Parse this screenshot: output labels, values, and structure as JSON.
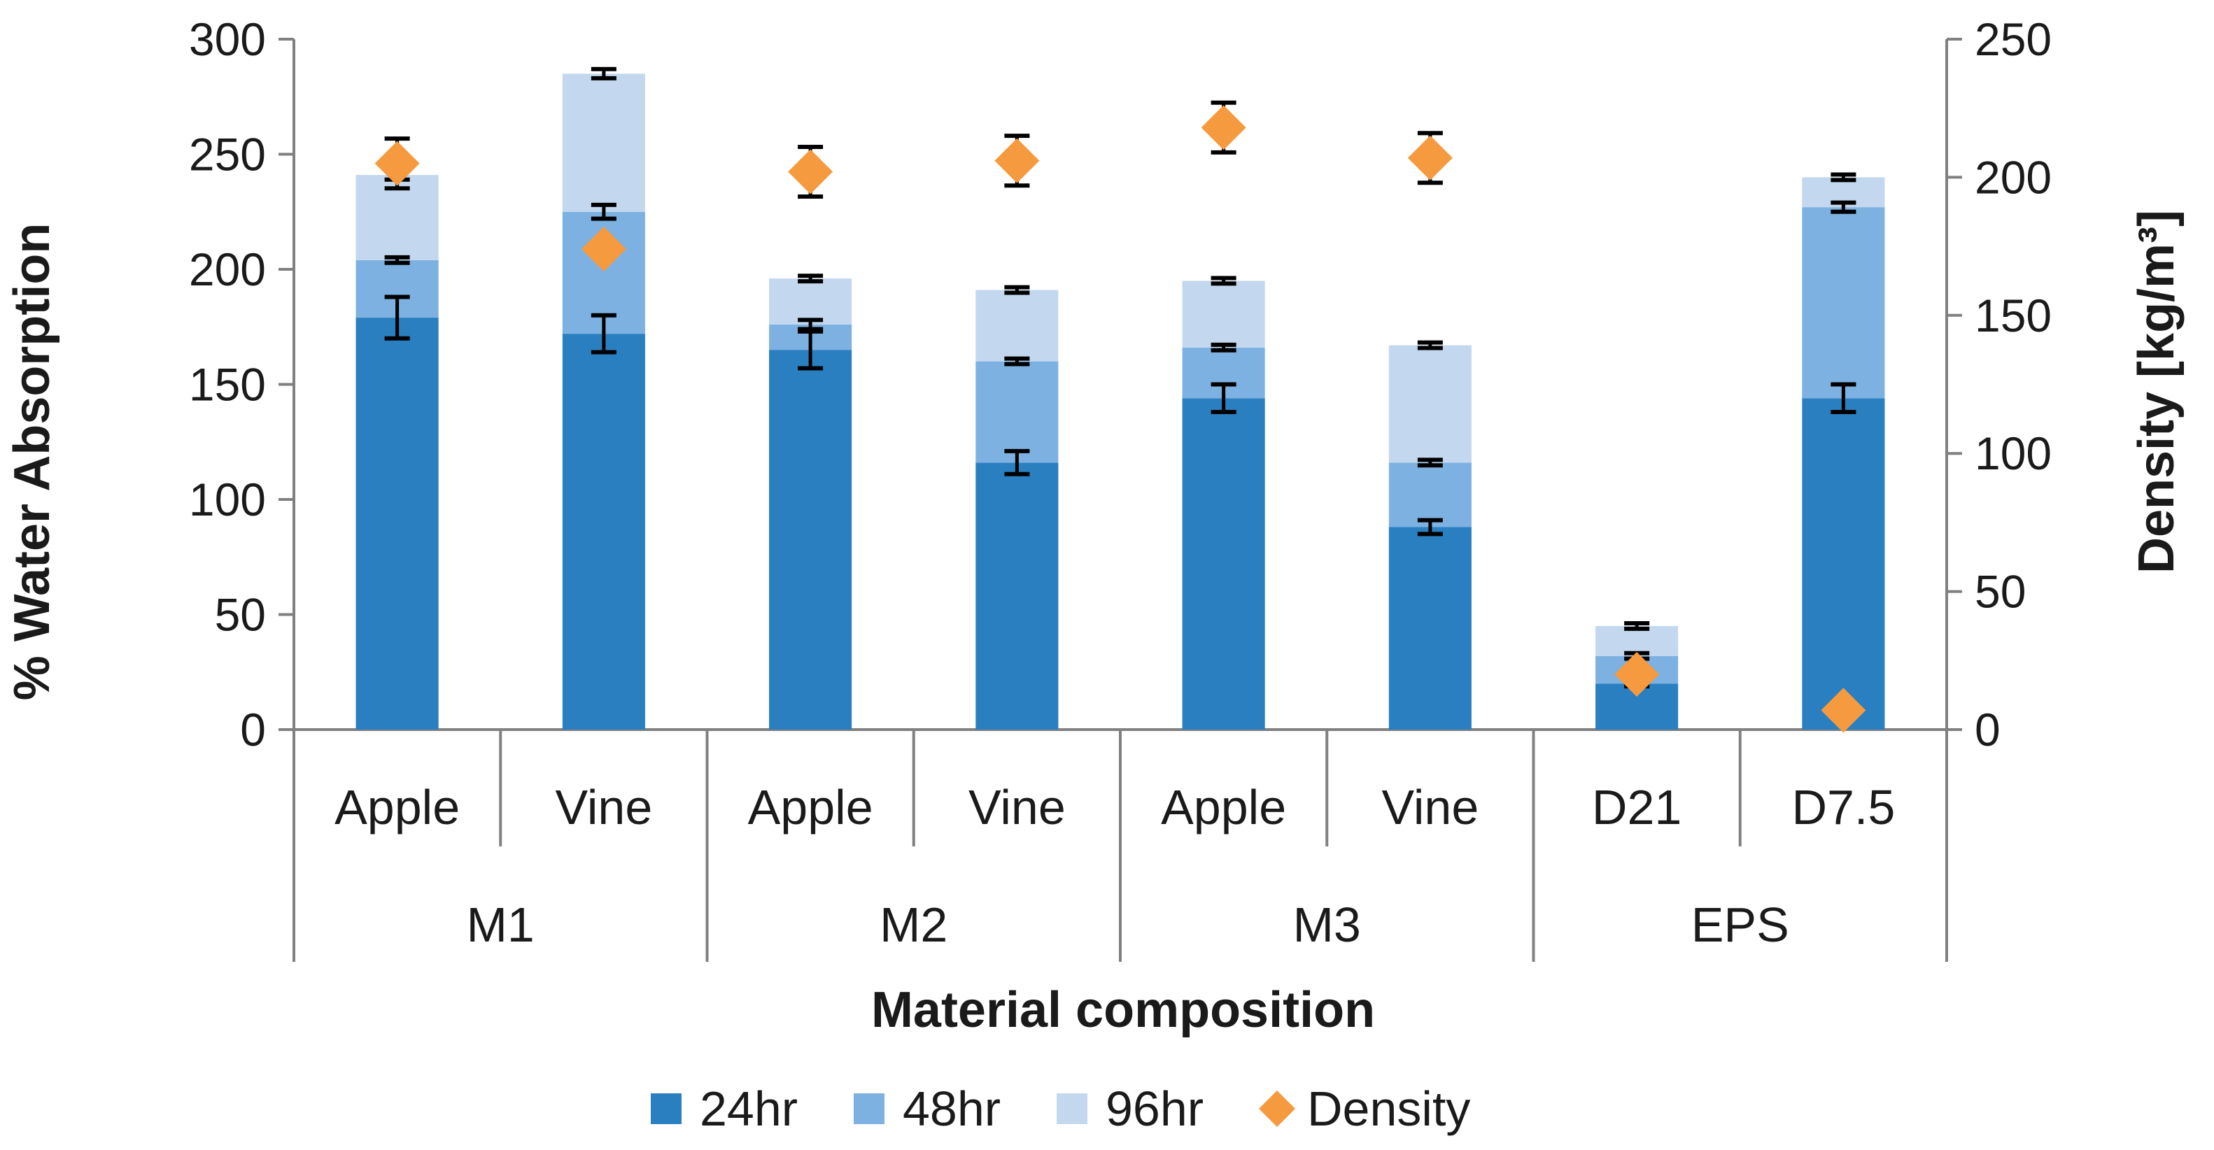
{
  "chart_data": {
    "type": "bar",
    "subtype": "stacked-bar-with-scatter-secondary-axis",
    "title": "",
    "xlabel": "Material composition",
    "ylabel": "% Water Absorption",
    "y2label": "Density [kg/m³]",
    "ylim": [
      0,
      300
    ],
    "y2lim": [
      0,
      250
    ],
    "yticks": [
      "0",
      "50",
      "100",
      "150",
      "200",
      "250",
      "300"
    ],
    "y2ticks": [
      "0",
      "50",
      "100",
      "150",
      "200",
      "250"
    ],
    "categories": [
      "Apple",
      "Vine",
      "Apple",
      "Vine",
      "Apple",
      "Vine",
      "D21",
      "D7.5"
    ],
    "groups": [
      {
        "label": "M1",
        "span": 2
      },
      {
        "label": "M2",
        "span": 2
      },
      {
        "label": "M3",
        "span": 2
      },
      {
        "label": "EPS",
        "span": 2
      }
    ],
    "series": [
      {
        "name": "24hr",
        "color": "#2a7fc1",
        "values": [
          179,
          172,
          165,
          116,
          144,
          88,
          20,
          144
        ],
        "errors": [
          9,
          8,
          8,
          5,
          6,
          3,
          0,
          6
        ]
      },
      {
        "name": "48hr",
        "color": "#7db1e1",
        "values": [
          25,
          53,
          11,
          44,
          22,
          28,
          12,
          83
        ],
        "errors": [
          0,
          3,
          2,
          1,
          0,
          0,
          0,
          2
        ]
      },
      {
        "name": "96hr",
        "color": "#c3d8ee",
        "values": [
          37,
          60,
          20,
          31,
          29,
          51,
          13,
          13
        ],
        "errors": [
          2,
          2,
          0,
          0,
          0,
          1,
          0,
          0
        ]
      }
    ],
    "scatter": {
      "name": "Density",
      "color": "#f59a3e",
      "axis": "y2",
      "values": [
        205,
        174,
        202,
        206,
        218,
        207,
        20,
        7
      ],
      "errors": [
        9,
        0,
        9,
        9,
        9,
        9,
        0,
        0
      ]
    },
    "legend_position": "bottom"
  }
}
